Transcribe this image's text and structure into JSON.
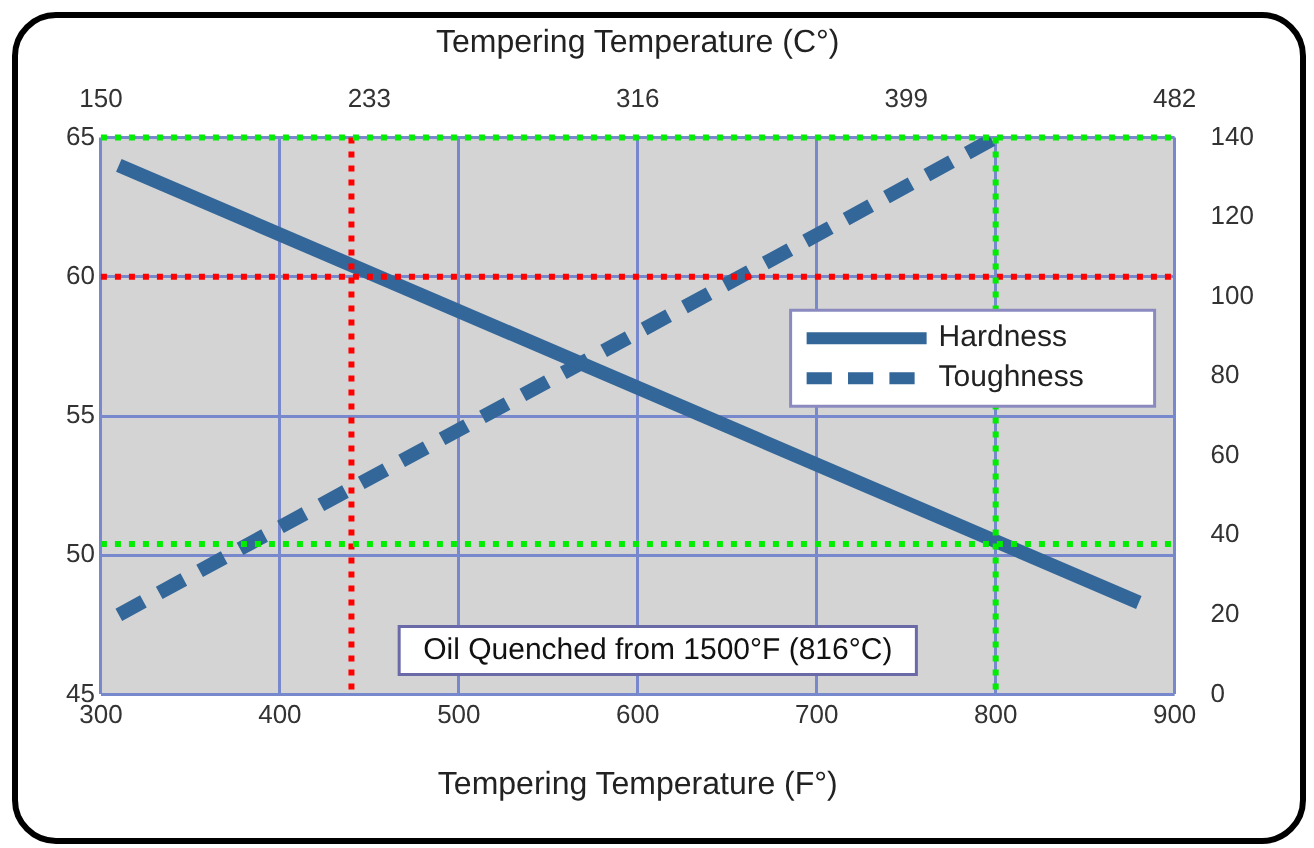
{
  "chart_data": {
    "type": "line",
    "x2label": "Tempering Temperature (C°)",
    "xlabel": "Tempering Temperature (F°)",
    "xlim": [
      300,
      900
    ],
    "xticks": [
      300,
      400,
      500,
      600,
      700,
      800,
      900
    ],
    "x2lim": [
      150,
      482
    ],
    "x2ticks": [
      150,
      233,
      316,
      399,
      482
    ],
    "ylim": [
      45,
      65
    ],
    "yticks": [
      45,
      50,
      55,
      60,
      65
    ],
    "y2lim": [
      0,
      140
    ],
    "y2ticks": [
      0,
      20,
      40,
      60,
      80,
      100,
      120,
      140
    ],
    "series": [
      {
        "name": "Hardness",
        "color": "#336699",
        "x": [
          310,
          880
        ],
        "values": [
          64,
          48.3
        ],
        "line_style": "solid"
      },
      {
        "name": "Toughness",
        "color": "#336699",
        "x": [
          310,
          800
        ],
        "values": [
          20,
          140
        ],
        "axis": "y2",
        "line_style": "dashed"
      }
    ],
    "ref_lines": [
      {
        "axis": "y",
        "value": 60,
        "color": "#ff0000",
        "line_style": "dotted"
      },
      {
        "axis": "x",
        "value": 440,
        "color": "#ff0000",
        "line_style": "dotted"
      },
      {
        "axis": "x",
        "value": 800,
        "color": "#00ee00",
        "line_style": "dotted"
      },
      {
        "axis": "y2",
        "value": 140,
        "color": "#00ee00",
        "line_style": "dotted"
      },
      {
        "axis": "y",
        "value": 50.4,
        "color": "#00ee00",
        "line_style": "dotted"
      }
    ],
    "annotations": [
      "Oil Quenched from 1500°F (816°C)"
    ],
    "grid": true,
    "legend": "right",
    "marker": "none"
  }
}
